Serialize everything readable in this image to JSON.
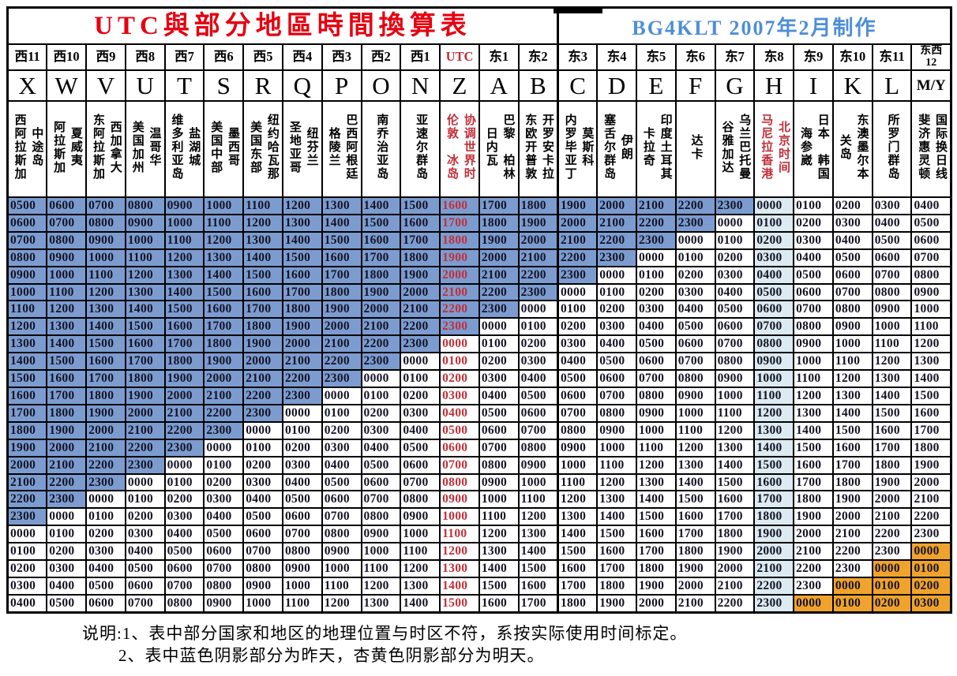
{
  "title": {
    "left": "UTC與部分地區時間換算表",
    "right": "BG4KLT 2007年2月制作"
  },
  "colors": {
    "yesterday_blue": "#7C9CD0",
    "beijing_light_blue": "#DCEAF1",
    "tomorrow_orange": "#F0A32C",
    "red_text": "#C22F38",
    "title_red": "#E60010",
    "title_blue": "#4D8ED8"
  },
  "columns": [
    {
      "offset": "西11",
      "letter": "X",
      "regions": [
        "中途岛",
        "西阿拉斯加"
      ]
    },
    {
      "offset": "西10",
      "letter": "W",
      "regions": [
        "夏威夷",
        "阿拉斯加"
      ]
    },
    {
      "offset": "西9",
      "letter": "V",
      "regions": [
        "西加拿大",
        "东阿拉斯加"
      ]
    },
    {
      "offset": "西8",
      "letter": "U",
      "regions": [
        "温哥华",
        "美国加州"
      ]
    },
    {
      "offset": "西7",
      "letter": "T",
      "regions": [
        "盐湖城",
        "维多利亚岛"
      ]
    },
    {
      "offset": "西6",
      "letter": "S",
      "regions": [
        "墨西哥",
        "美国中部"
      ]
    },
    {
      "offset": "西5",
      "letter": "R",
      "regions": [
        "纽约哈瓦那",
        "美国东部"
      ]
    },
    {
      "offset": "西4",
      "letter": "Q",
      "regions": [
        "纽芬兰",
        "圣地亚哥"
      ]
    },
    {
      "offset": "西3",
      "letter": "P",
      "regions": [
        "巴西阿根廷",
        "格陵兰"
      ]
    },
    {
      "offset": "西2",
      "letter": "O",
      "regions": [
        "南乔治亚岛"
      ]
    },
    {
      "offset": "西1",
      "letter": "N",
      "regions": [
        "亚速尔群岛"
      ]
    },
    {
      "offset": "UTC",
      "letter": "Z",
      "regions": [
        "协调世界时",
        "伦敦　冰岛"
      ],
      "highlight": "utc"
    },
    {
      "offset": "东1",
      "letter": "A",
      "regions": [
        "巴黎　柏林",
        "日内瓦"
      ]
    },
    {
      "offset": "东2",
      "letter": "B",
      "regions": [
        "开罗安卡拉",
        "东欧开普敦"
      ]
    },
    {
      "offset": "东3",
      "letter": "C",
      "regions": [
        "莫斯科",
        "内罗毕亚丁"
      ]
    },
    {
      "offset": "东4",
      "letter": "D",
      "regions": [
        "伊朗",
        "塞舌尔群岛"
      ]
    },
    {
      "offset": "东5",
      "letter": "E",
      "regions": [
        "印度土耳其",
        "卡拉奇"
      ]
    },
    {
      "offset": "东6",
      "letter": "F",
      "regions": [
        "达卡"
      ]
    },
    {
      "offset": "东7",
      "letter": "G",
      "regions": [
        "乌兰巴托曼",
        "谷雅加达"
      ]
    },
    {
      "offset": "东8",
      "letter": "H",
      "regions": [
        "北京时间",
        "马尼拉香港"
      ],
      "highlight": "beijing"
    },
    {
      "offset": "东9",
      "letter": "I",
      "regions": [
        "日本　韩国",
        "海参崴"
      ]
    },
    {
      "offset": "东10",
      "letter": "K",
      "regions": [
        "东澳墨尔本",
        "关岛"
      ]
    },
    {
      "offset": "东11",
      "letter": "L",
      "regions": [
        "所罗门群岛"
      ]
    },
    {
      "offset": "东西\n12",
      "letter": "M/Y",
      "regions": [
        "国际换日线",
        "斐济惠灵顿"
      ]
    }
  ],
  "rows": [
    [
      "0500",
      "0600",
      "0700",
      "0800",
      "0900",
      "1000",
      "1100",
      "1200",
      "1300",
      "1400",
      "1500",
      "1600",
      "1700",
      "1800",
      "1900",
      "2000",
      "2100",
      "2200",
      "2300",
      "0000",
      "0100",
      "0200",
      "0300",
      "0400"
    ],
    [
      "0600",
      "0700",
      "0800",
      "0900",
      "1000",
      "1100",
      "1200",
      "1300",
      "1400",
      "1500",
      "1600",
      "1700",
      "1800",
      "1900",
      "2000",
      "2100",
      "2200",
      "2300",
      "0000",
      "0100",
      "0200",
      "0300",
      "0400",
      "0500"
    ],
    [
      "0700",
      "0800",
      "0900",
      "1000",
      "1100",
      "1200",
      "1300",
      "1400",
      "1500",
      "1600",
      "1700",
      "1800",
      "1900",
      "2000",
      "2100",
      "2200",
      "2300",
      "0000",
      "0100",
      "0200",
      "0300",
      "0400",
      "0500",
      "0600"
    ],
    [
      "0800",
      "0900",
      "1000",
      "1100",
      "1200",
      "1300",
      "1400",
      "1500",
      "1600",
      "1700",
      "1800",
      "1900",
      "2000",
      "2100",
      "2200",
      "2300",
      "0000",
      "0100",
      "0200",
      "0300",
      "0400",
      "0500",
      "0600",
      "0700"
    ],
    [
      "0900",
      "1000",
      "1100",
      "1200",
      "1300",
      "1400",
      "1500",
      "1600",
      "1700",
      "1800",
      "1900",
      "2000",
      "2100",
      "2200",
      "2300",
      "0000",
      "0100",
      "0200",
      "0300",
      "0400",
      "0500",
      "0600",
      "0700",
      "0800"
    ],
    [
      "1000",
      "1100",
      "1200",
      "1300",
      "1400",
      "1500",
      "1600",
      "1700",
      "1800",
      "1900",
      "2000",
      "2100",
      "2200",
      "2300",
      "0000",
      "0100",
      "0200",
      "0300",
      "0400",
      "0500",
      "0600",
      "0700",
      "0800",
      "0900"
    ],
    [
      "1100",
      "1200",
      "1300",
      "1400",
      "1500",
      "1600",
      "1700",
      "1800",
      "1900",
      "2000",
      "2100",
      "2200",
      "2300",
      "0000",
      "0100",
      "0200",
      "0300",
      "0400",
      "0500",
      "0600",
      "0700",
      "0800",
      "0900",
      "1000"
    ],
    [
      "1200",
      "1300",
      "1400",
      "1500",
      "1600",
      "1700",
      "1800",
      "1900",
      "2000",
      "2100",
      "2200",
      "2300",
      "0000",
      "0100",
      "0200",
      "0300",
      "0400",
      "0500",
      "0600",
      "0700",
      "0800",
      "0900",
      "1000",
      "1100"
    ],
    [
      "1300",
      "1400",
      "1500",
      "1600",
      "1700",
      "1800",
      "1900",
      "2000",
      "2100",
      "2200",
      "2300",
      "0000",
      "0100",
      "0200",
      "0300",
      "0400",
      "0500",
      "0600",
      "0700",
      "0800",
      "0900",
      "1000",
      "1100",
      "1200"
    ],
    [
      "1400",
      "1500",
      "1600",
      "1700",
      "1800",
      "1900",
      "2000",
      "2100",
      "2200",
      "2300",
      "0000",
      "0100",
      "0200",
      "0300",
      "0400",
      "0500",
      "0600",
      "0700",
      "0800",
      "0900",
      "1000",
      "1100",
      "1200",
      "1300"
    ],
    [
      "1500",
      "1600",
      "1700",
      "1800",
      "1900",
      "2000",
      "2100",
      "2200",
      "2300",
      "0000",
      "0100",
      "0200",
      "0300",
      "0400",
      "0500",
      "0600",
      "0700",
      "0800",
      "0900",
      "1000",
      "1100",
      "1200",
      "1300",
      "1400"
    ],
    [
      "1600",
      "1700",
      "1800",
      "1900",
      "2000",
      "2100",
      "2200",
      "2300",
      "0000",
      "0100",
      "0200",
      "0300",
      "0400",
      "0500",
      "0600",
      "0700",
      "0800",
      "0900",
      "1000",
      "1100",
      "1200",
      "1300",
      "1400",
      "1500"
    ],
    [
      "1700",
      "1800",
      "1900",
      "2000",
      "2100",
      "2200",
      "2300",
      "0000",
      "0100",
      "0200",
      "0300",
      "0400",
      "0500",
      "0600",
      "0700",
      "0800",
      "0900",
      "1000",
      "1100",
      "1200",
      "1300",
      "1400",
      "1500",
      "1600"
    ],
    [
      "1800",
      "1900",
      "2000",
      "2100",
      "2200",
      "2300",
      "0000",
      "0100",
      "0200",
      "0300",
      "0400",
      "0500",
      "0600",
      "0700",
      "0800",
      "0900",
      "1000",
      "1100",
      "1200",
      "1300",
      "1400",
      "1500",
      "1600",
      "1700"
    ],
    [
      "1900",
      "2000",
      "2100",
      "2200",
      "2300",
      "0000",
      "0100",
      "0200",
      "0300",
      "0400",
      "0500",
      "0600",
      "0700",
      "0800",
      "0900",
      "1000",
      "1100",
      "1200",
      "1300",
      "1400",
      "1500",
      "1600",
      "1700",
      "1800"
    ],
    [
      "2000",
      "2100",
      "2200",
      "2300",
      "0000",
      "0100",
      "0200",
      "0300",
      "0400",
      "0500",
      "0600",
      "0700",
      "0800",
      "0900",
      "1000",
      "1100",
      "1200",
      "1300",
      "1400",
      "1500",
      "1600",
      "1700",
      "1800",
      "1900"
    ],
    [
      "2100",
      "2200",
      "2300",
      "0000",
      "0100",
      "0200",
      "0300",
      "0400",
      "0500",
      "0600",
      "0700",
      "0800",
      "0900",
      "1000",
      "1100",
      "1200",
      "1300",
      "1400",
      "1500",
      "1600",
      "1700",
      "1800",
      "1900",
      "2000"
    ],
    [
      "2200",
      "2300",
      "0000",
      "0100",
      "0200",
      "0300",
      "0400",
      "0500",
      "0600",
      "0700",
      "0800",
      "0900",
      "1000",
      "1100",
      "1200",
      "1300",
      "1400",
      "1500",
      "1600",
      "1700",
      "1800",
      "1900",
      "2000",
      "2100"
    ],
    [
      "2300",
      "0000",
      "0100",
      "0200",
      "0300",
      "0400",
      "0500",
      "0600",
      "0700",
      "0800",
      "0900",
      "1000",
      "1100",
      "1200",
      "1300",
      "1400",
      "1500",
      "1600",
      "1700",
      "1800",
      "1900",
      "2000",
      "2100",
      "2200"
    ],
    [
      "0000",
      "0100",
      "0200",
      "0300",
      "0400",
      "0500",
      "0600",
      "0700",
      "0800",
      "0900",
      "1000",
      "1100",
      "1200",
      "1300",
      "1400",
      "1500",
      "1600",
      "1700",
      "1800",
      "1900",
      "2000",
      "2100",
      "2200",
      "2300"
    ],
    [
      "0100",
      "0200",
      "0300",
      "0400",
      "0500",
      "0600",
      "0700",
      "0800",
      "0900",
      "1000",
      "1100",
      "1200",
      "1300",
      "1400",
      "1500",
      "1600",
      "1700",
      "1800",
      "1900",
      "2000",
      "2100",
      "2200",
      "2300",
      "0000"
    ],
    [
      "0200",
      "0300",
      "0400",
      "0500",
      "0600",
      "0700",
      "0800",
      "0900",
      "1000",
      "1100",
      "1200",
      "1300",
      "1400",
      "1500",
      "1600",
      "1700",
      "1800",
      "1900",
      "2000",
      "2100",
      "2200",
      "2300",
      "0000",
      "0100"
    ],
    [
      "0300",
      "0400",
      "0500",
      "0600",
      "0700",
      "0800",
      "0900",
      "1000",
      "1100",
      "1200",
      "1300",
      "1400",
      "1500",
      "1600",
      "1700",
      "1800",
      "1900",
      "2000",
      "2100",
      "2200",
      "2300",
      "0000",
      "0100",
      "0200"
    ],
    [
      "0400",
      "0500",
      "0600",
      "0700",
      "0800",
      "0900",
      "1000",
      "1100",
      "1200",
      "1300",
      "1400",
      "1500",
      "1600",
      "1700",
      "1800",
      "1900",
      "2000",
      "2100",
      "2200",
      "2300",
      "0000",
      "0100",
      "0200",
      "0300"
    ]
  ],
  "notes": [
    "说明:1、表中部分国家和地区的地理位置与时区不符，系按实际使用时间标定。",
    "2、表中蓝色阴影部分为昨天，杏黄色阴影部分为明天。"
  ]
}
